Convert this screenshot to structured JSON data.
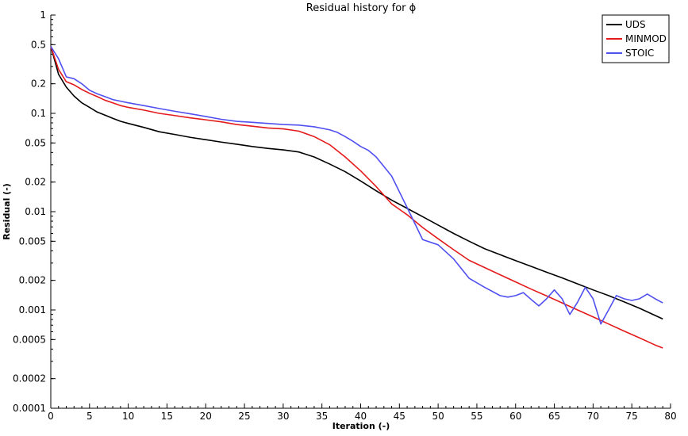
{
  "chart_data": {
    "type": "line",
    "title": "Residual history for ϕ",
    "xlabel": "Iteration (-)",
    "ylabel": "Residual (-)",
    "xlim": [
      0,
      80
    ],
    "ylim": [
      0.0001,
      1
    ],
    "yscale": "log",
    "grid": false,
    "legend_position": "top-right",
    "x_ticks": [
      0,
      5,
      10,
      15,
      20,
      25,
      30,
      35,
      40,
      45,
      50,
      55,
      60,
      65,
      70,
      75,
      80
    ],
    "y_ticks": [
      {
        "value": 1,
        "label": "1"
      },
      {
        "value": 0.5,
        "label": "0.5"
      },
      {
        "value": 0.2,
        "label": "0.2"
      },
      {
        "value": 0.1,
        "label": "0.1"
      },
      {
        "value": 0.05,
        "label": "0.05"
      },
      {
        "value": 0.02,
        "label": "0.02"
      },
      {
        "value": 0.01,
        "label": "0.01"
      },
      {
        "value": 0.005,
        "label": "0.005"
      },
      {
        "value": 0.002,
        "label": "0.002"
      },
      {
        "value": 0.001,
        "label": "0.001"
      },
      {
        "value": 0.0005,
        "label": "0.0005"
      },
      {
        "value": 0.0002,
        "label": "0.0002"
      },
      {
        "value": 0.0001,
        "label": "0.0001"
      }
    ],
    "series": [
      {
        "name": "UDS",
        "color": "#000000",
        "x": [
          0,
          1,
          2,
          3,
          4,
          5,
          6,
          7,
          8,
          9,
          10,
          12,
          14,
          16,
          18,
          20,
          22,
          24,
          26,
          28,
          30,
          32,
          34,
          36,
          38,
          40,
          42,
          44,
          46,
          48,
          50,
          52,
          54,
          56,
          58,
          60,
          62,
          64,
          66,
          68,
          70,
          72,
          74,
          76,
          78,
          79
        ],
        "y": [
          0.48,
          0.25,
          0.185,
          0.15,
          0.128,
          0.115,
          0.103,
          0.096,
          0.089,
          0.083,
          0.079,
          0.072,
          0.065,
          0.061,
          0.057,
          0.054,
          0.051,
          0.0485,
          0.046,
          0.044,
          0.0425,
          0.0405,
          0.036,
          0.0305,
          0.0255,
          0.0205,
          0.0163,
          0.0131,
          0.0108,
          0.0089,
          0.0073,
          0.006,
          0.005,
          0.0042,
          0.00365,
          0.00318,
          0.00278,
          0.00242,
          0.00212,
          0.00184,
          0.0016,
          0.0014,
          0.00121,
          0.00104,
          0.00088,
          0.00081
        ]
      },
      {
        "name": "MINMOD",
        "color": "#e41a1c",
        "x": [
          0,
          1,
          2,
          3,
          4,
          5,
          6,
          7,
          8,
          9,
          10,
          12,
          14,
          16,
          18,
          20,
          22,
          24,
          26,
          28,
          30,
          32,
          34,
          36,
          38,
          40,
          42,
          44,
          46,
          48,
          50,
          52,
          54,
          56,
          58,
          60,
          62,
          64,
          66,
          68,
          70,
          72,
          74,
          76,
          78,
          79
        ],
        "y": [
          0.48,
          0.28,
          0.21,
          0.195,
          0.175,
          0.16,
          0.148,
          0.136,
          0.128,
          0.12,
          0.115,
          0.108,
          0.1,
          0.095,
          0.09,
          0.086,
          0.082,
          0.077,
          0.074,
          0.071,
          0.0695,
          0.066,
          0.058,
          0.048,
          0.036,
          0.026,
          0.018,
          0.012,
          0.0093,
          0.0069,
          0.0053,
          0.0041,
          0.0032,
          0.0027,
          0.00228,
          0.00193,
          0.00163,
          0.00139,
          0.00118,
          0.001,
          0.00085,
          0.00072,
          0.00061,
          0.00052,
          0.00044,
          0.00041
        ]
      },
      {
        "name": "STOIC",
        "color": "#5050f0",
        "x": [
          0,
          1,
          2,
          3,
          4,
          5,
          6,
          7,
          8,
          9,
          10,
          12,
          14,
          16,
          18,
          20,
          22,
          24,
          26,
          28,
          30,
          32,
          34,
          36,
          37,
          38,
          39,
          40,
          41,
          42,
          44,
          46,
          48,
          50,
          52,
          54,
          56,
          58,
          59,
          60,
          61,
          62,
          63,
          64,
          65,
          66,
          67,
          68,
          69,
          70,
          71,
          72,
          73,
          74,
          75,
          76,
          77,
          78,
          79
        ],
        "y": [
          0.48,
          0.36,
          0.235,
          0.225,
          0.2,
          0.172,
          0.158,
          0.148,
          0.138,
          0.133,
          0.128,
          0.12,
          0.112,
          0.105,
          0.099,
          0.093,
          0.087,
          0.083,
          0.081,
          0.079,
          0.077,
          0.076,
          0.073,
          0.068,
          0.064,
          0.058,
          0.052,
          0.046,
          0.042,
          0.036,
          0.023,
          0.011,
          0.0052,
          0.0046,
          0.0033,
          0.0021,
          0.0017,
          0.0014,
          0.00135,
          0.0014,
          0.0015,
          0.00128,
          0.0011,
          0.0013,
          0.0016,
          0.0013,
          0.0009,
          0.0012,
          0.0017,
          0.0013,
          0.00072,
          0.001,
          0.0014,
          0.0013,
          0.00125,
          0.0013,
          0.00145,
          0.0013,
          0.00118
        ]
      }
    ]
  }
}
